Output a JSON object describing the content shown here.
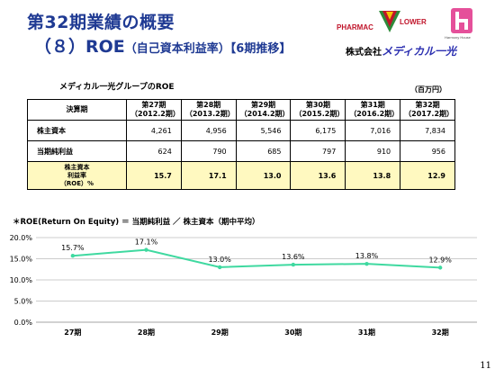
{
  "header": {
    "title": "第32期業績の概要",
    "subtitle_num": "（８）ROE",
    "subtitle_paren": "（自己資本利益率）",
    "subtitle_tail": "【6期推移】"
  },
  "logos": {
    "pharmac": "PHARMAC",
    "lower": "LOWER",
    "harmony": "Harmony House",
    "company_prefix": "株式会社",
    "company_name": "メディカル一光"
  },
  "table_section": {
    "title": "メディカル一光グループのROE",
    "unit": "（百万円）",
    "headers": [
      {
        "line1": "決算期",
        "line2": ""
      },
      {
        "line1": "第27期",
        "line2": "（2012.2期）"
      },
      {
        "line1": "第28期",
        "line2": "（2013.2期）"
      },
      {
        "line1": "第29期",
        "line2": "（2014.2期）"
      },
      {
        "line1": "第30期",
        "line2": "（2015.2期）"
      },
      {
        "line1": "第31期",
        "line2": "（2016.2期）"
      },
      {
        "line1": "第32期",
        "line2": "（2017.2期）"
      }
    ],
    "rows": [
      {
        "label": "株主資本",
        "values": [
          "4,261",
          "4,956",
          "5,546",
          "6,175",
          "7,016",
          "7,834"
        ]
      },
      {
        "label": "当期純利益",
        "values": [
          "624",
          "790",
          "685",
          "797",
          "910",
          "956"
        ]
      }
    ],
    "roe_row": {
      "label1": "株主資本",
      "label2": "利益率",
      "label3": "（ROE）%",
      "values": [
        "15.7",
        "17.1",
        "13.0",
        "13.6",
        "13.8",
        "12.9"
      ]
    }
  },
  "formula": "＊ROE(Return On Equity) ＝ 当期純利益 ／ 株主資本（期中平均）",
  "chart_data": {
    "type": "line",
    "categories": [
      "27期",
      "28期",
      "29期",
      "30期",
      "31期",
      "32期"
    ],
    "values": [
      15.7,
      17.1,
      13.0,
      13.6,
      13.8,
      12.9
    ],
    "data_labels": [
      "15.7%",
      "17.1%",
      "13.0%",
      "13.6%",
      "13.8%",
      "12.9%"
    ],
    "y_ticks": [
      "0.0%",
      "5.0%",
      "10.0%",
      "15.0%",
      "20.0%"
    ],
    "ylim": [
      0,
      20
    ],
    "grid": true,
    "line_color": "#3fd9a0"
  },
  "page_number": "11"
}
